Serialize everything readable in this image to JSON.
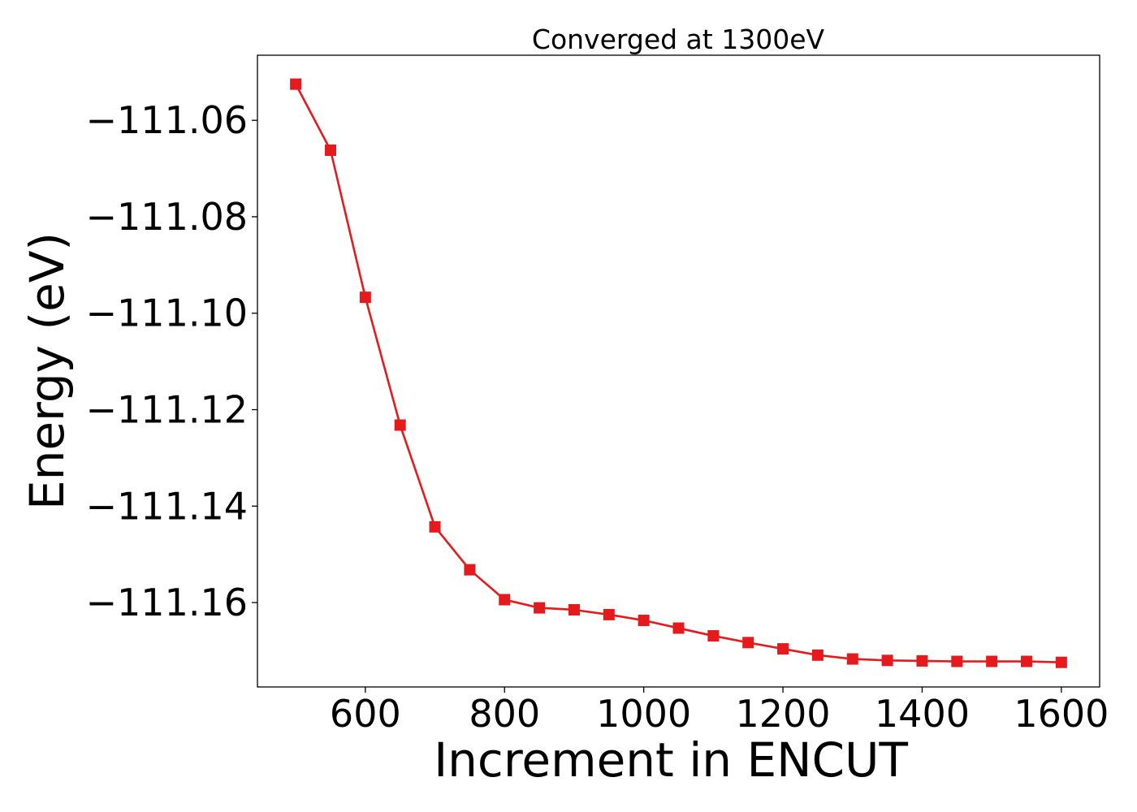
{
  "chart_data": {
    "type": "line",
    "title": "Converged at 1300eV",
    "xlabel": "Increment in ENCUT",
    "ylabel": "Energy (eV)",
    "xlim": [
      445,
      1655
    ],
    "ylim": [
      -111.1775,
      -111.0465
    ],
    "xticks": [
      600,
      800,
      1000,
      1200,
      1400,
      1600
    ],
    "xtick_labels": [
      "600",
      "800",
      "1000",
      "1200",
      "1400",
      "1600"
    ],
    "yticks": [
      -111.06,
      -111.08,
      -111.1,
      -111.12,
      -111.14,
      -111.16
    ],
    "ytick_labels": [
      "−111.06",
      "−111.08",
      "−111.10",
      "−111.12",
      "−111.14",
      "−111.16"
    ],
    "grid": false,
    "series": [
      {
        "color": "#e41a1c",
        "marker": "square",
        "x": [
          500,
          550,
          600,
          650,
          700,
          750,
          800,
          850,
          900,
          950,
          1000,
          1050,
          1100,
          1150,
          1200,
          1250,
          1300,
          1350,
          1400,
          1450,
          1500,
          1550,
          1600
        ],
        "y": [
          -111.0525,
          -111.0662,
          -111.0967,
          -111.1232,
          -111.1443,
          -111.1532,
          -111.1594,
          -111.1611,
          -111.1615,
          -111.1625,
          -111.1637,
          -111.1653,
          -111.1669,
          -111.1683,
          -111.1696,
          -111.1709,
          -111.1717,
          -111.172,
          -111.1721,
          -111.1722,
          -111.1722,
          -111.1722,
          -111.1724
        ]
      }
    ]
  }
}
